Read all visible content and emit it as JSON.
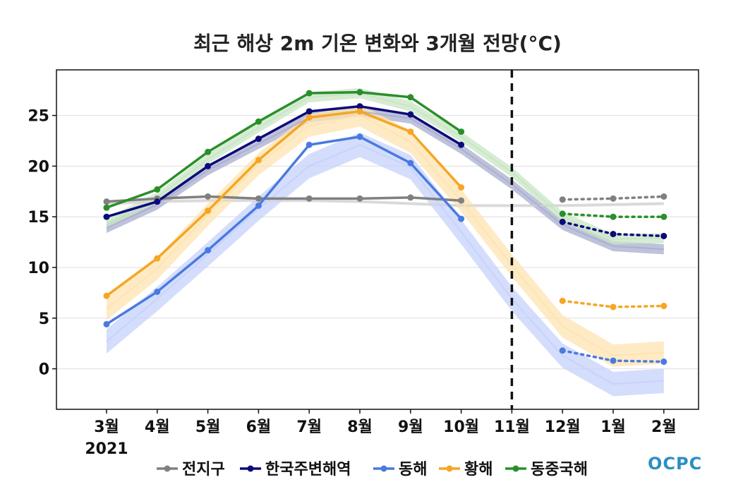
{
  "chart_data": {
    "type": "line",
    "title": "최근 해상 2m 기온 변화와 3개월 전망(°C)",
    "categories": [
      "3월",
      "4월",
      "5월",
      "6월",
      "7월",
      "8월",
      "9월",
      "10월",
      "11월",
      "12월",
      "1월",
      "2월"
    ],
    "year_label": "2021",
    "ylim": [
      -4,
      29.5
    ],
    "yticks": [
      0,
      5,
      10,
      15,
      20,
      25
    ],
    "grid": true,
    "forecast_start_category": "11월",
    "legend": "bottom",
    "series": [
      {
        "name": "전지구",
        "color": "#808080",
        "observed": [
          16.5,
          16.8,
          17.0,
          16.8,
          16.8,
          16.8,
          16.9,
          16.6
        ],
        "forecast": [
          null,
          null,
          null,
          null,
          null,
          null,
          null,
          null,
          null,
          16.7,
          16.8,
          17.0
        ],
        "climatology": [
          16.3,
          16.5,
          16.6,
          16.6,
          16.6,
          16.5,
          16.3,
          16.1,
          16.1,
          16.1,
          16.2,
          16.3
        ],
        "climatology_spread": 0.15,
        "band_color": "#d6d6d6"
      },
      {
        "name": "한국주변해역",
        "color": "#0b0b7a",
        "observed": [
          15.0,
          16.5,
          20.0,
          22.7,
          25.4,
          25.9,
          25.1,
          22.1
        ],
        "forecast": [
          null,
          null,
          null,
          null,
          null,
          null,
          null,
          null,
          null,
          14.5,
          13.3,
          13.1
        ],
        "climatology": [
          13.9,
          16.2,
          19.6,
          22.2,
          24.8,
          25.4,
          24.7,
          21.7,
          18.2,
          14.2,
          12.1,
          11.8
        ],
        "climatology_spread": 0.5,
        "band_color": "#a9aecf"
      },
      {
        "name": "동해",
        "color": "#4a7ae0",
        "observed": [
          4.4,
          7.6,
          11.7,
          16.1,
          22.1,
          22.9,
          20.3,
          14.8
        ],
        "forecast": [
          null,
          null,
          null,
          null,
          null,
          null,
          null,
          null,
          null,
          1.8,
          0.8,
          0.7
        ],
        "climatology": [
          2.7,
          6.9,
          11.3,
          15.8,
          20.0,
          22.1,
          19.9,
          13.5,
          6.9,
          1.3,
          -1.5,
          -1.2
        ],
        "climatology_spread": 1.2,
        "band_color": "#c5d2fb"
      },
      {
        "name": "황해",
        "color": "#f5a623",
        "observed": [
          7.2,
          10.9,
          15.6,
          20.6,
          24.8,
          25.4,
          23.4,
          17.9
        ],
        "forecast": [
          null,
          null,
          null,
          null,
          null,
          null,
          null,
          null,
          null,
          6.7,
          6.1,
          6.2
        ],
        "climatology": [
          5.9,
          9.9,
          15.2,
          20.2,
          24.0,
          25.0,
          22.4,
          16.6,
          10.2,
          4.2,
          1.3,
          1.6
        ],
        "climatology_spread": 1.1,
        "band_color": "#fde3b0"
      },
      {
        "name": "동중국해",
        "color": "#2a8f2a",
        "observed": [
          15.9,
          17.7,
          21.4,
          24.4,
          27.2,
          27.3,
          26.8,
          23.4
        ],
        "forecast": [
          null,
          null,
          null,
          null,
          null,
          null,
          null,
          null,
          null,
          15.3,
          15.0,
          15.0
        ],
        "climatology": [
          14.4,
          16.9,
          20.7,
          23.8,
          26.8,
          27.2,
          25.9,
          22.9,
          19.4,
          15.0,
          12.8,
          12.9
        ],
        "climatology_spread": 0.5,
        "band_color": "#c8e6c4"
      }
    ]
  },
  "logo_text": "OCPC"
}
